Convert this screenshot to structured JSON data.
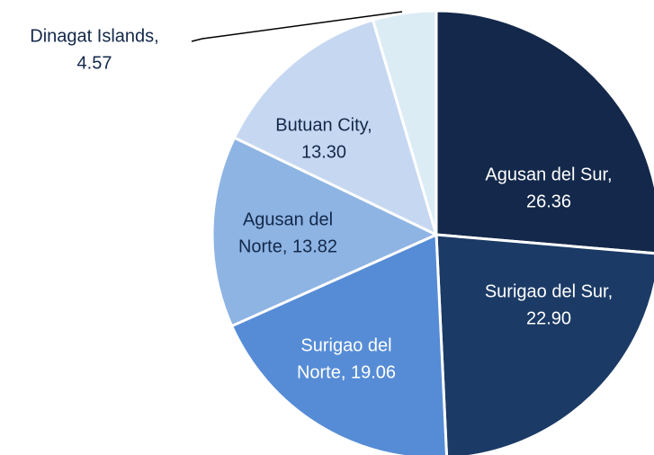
{
  "chart_data": {
    "type": "pie",
    "values": [
      26.36,
      22.9,
      19.06,
      13.82,
      13.3,
      4.57
    ],
    "value_labels": [
      [
        "Agusan del Sur,",
        "26.36"
      ],
      [
        "Surigao del Sur,",
        "22.90"
      ],
      [
        "Surigao del",
        "Norte, 19.06"
      ],
      [
        "Agusan del",
        "Norte, 13.82"
      ],
      [
        "Butuan City,",
        "13.30"
      ],
      [
        "Dinagat Islands,",
        "4.57"
      ]
    ],
    "colors": [
      "#13284a",
      "#1b3a66",
      "#568cd6",
      "#8eb4e3",
      "#c6d8f1",
      "#dcecf5"
    ],
    "label_colors": [
      "#ffffff",
      "#ffffff",
      "#ffffff",
      "#13284a",
      "#13284a",
      "#13284a"
    ]
  }
}
